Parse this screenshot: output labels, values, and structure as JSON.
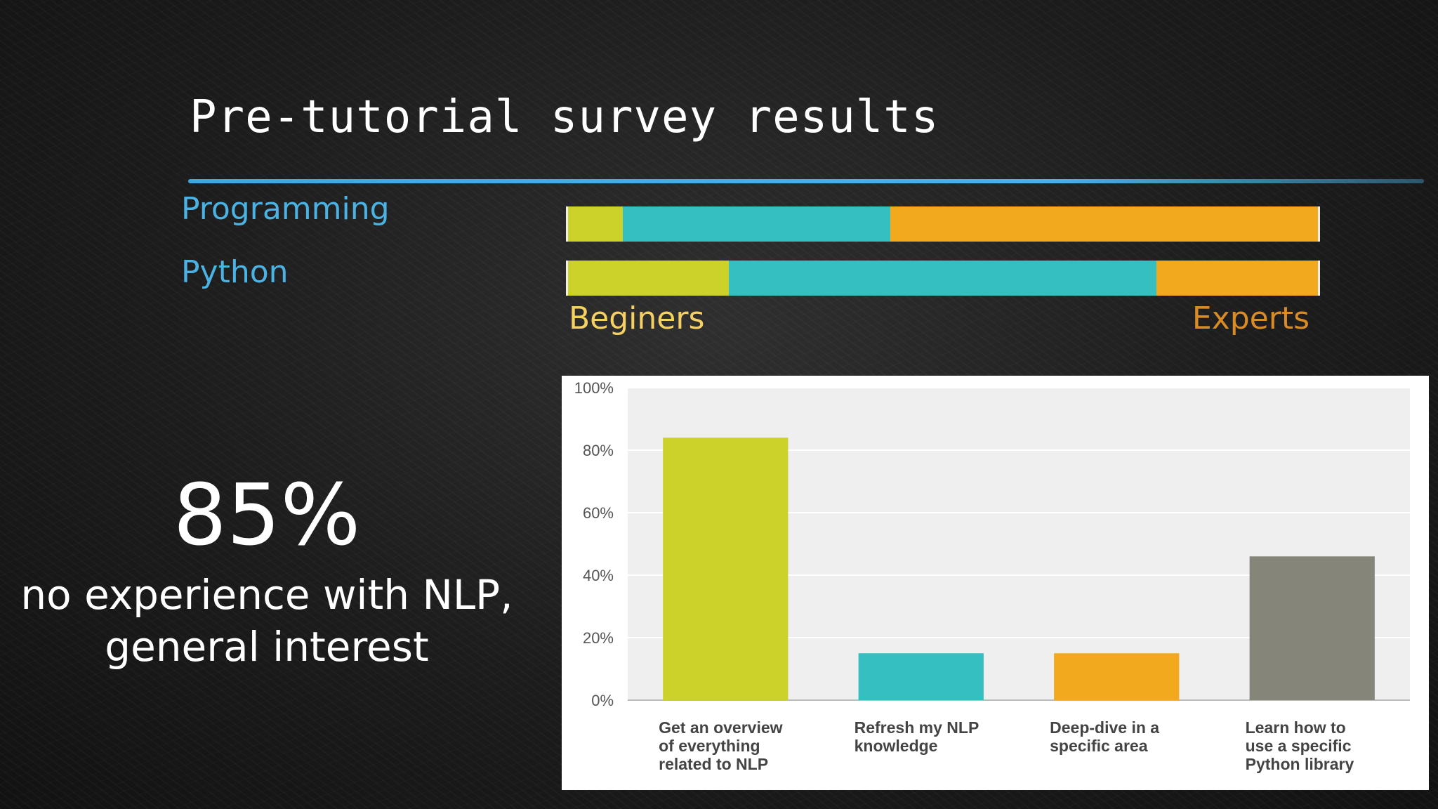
{
  "slide": {
    "title": "Pre-tutorial survey results",
    "colors": {
      "beginner": "#cdd22b",
      "intermediate": "#35bfc0",
      "expert": "#f2a91d",
      "other": "#858679",
      "label_blue": "#4ab3e4",
      "beginner_text": "#f5d063",
      "expert_text": "#d98b25"
    },
    "rows": [
      {
        "label": "Programming",
        "segments": [
          {
            "level": "beginner",
            "fraction": 0.073
          },
          {
            "level": "intermediate",
            "fraction": 0.357
          },
          {
            "level": "expert",
            "fraction": 0.57
          }
        ]
      },
      {
        "label": "Python",
        "segments": [
          {
            "level": "beginner",
            "fraction": 0.214
          },
          {
            "level": "intermediate",
            "fraction": 0.571
          },
          {
            "level": "expert",
            "fraction": 0.215
          }
        ]
      }
    ],
    "scale": {
      "left_label": "Beginers",
      "right_label": "Experts"
    },
    "highlight": {
      "value": "85%",
      "line1": "no experience with NLP,",
      "line2": "general interest"
    }
  },
  "chart_data": {
    "type": "bar",
    "categories": [
      "Get an overview of everything related to NLP",
      "Refresh my NLP knowledge",
      "Deep-dive in a specific area",
      "Learn how to use a specific Python library"
    ],
    "category_lines": [
      [
        "Get an overview",
        "of everything",
        "related to NLP"
      ],
      [
        "Refresh my NLP",
        "knowledge"
      ],
      [
        "Deep-dive in a",
        "specific area"
      ],
      [
        "Learn how to",
        "use a specific",
        "Python library"
      ]
    ],
    "values": [
      84,
      15,
      15,
      46
    ],
    "bar_colors": [
      "#cdd22b",
      "#35bfc0",
      "#f2a91d",
      "#858679"
    ],
    "ylim": [
      0,
      100
    ],
    "yticks": [
      "0%",
      "20%",
      "40%",
      "60%",
      "80%",
      "100%"
    ],
    "grid": true,
    "xlabel": "",
    "ylabel": "",
    "title": ""
  }
}
